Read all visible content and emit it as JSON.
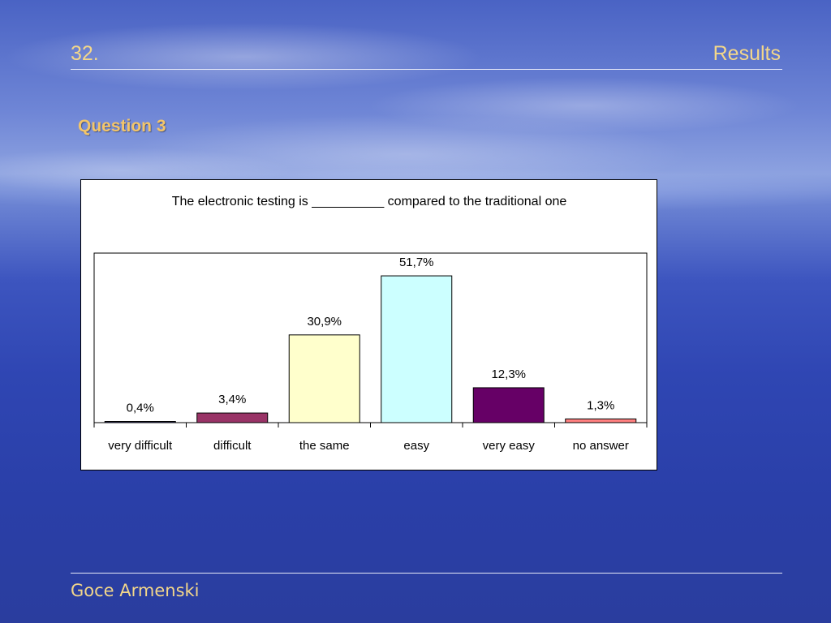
{
  "header": {
    "slide_number": "32.",
    "title": "Results"
  },
  "question_label": "Question 3",
  "footer": {
    "author": "Goce Armenski"
  },
  "chart_data": {
    "type": "bar",
    "title": "The electronic testing is __________ compared to the traditional one",
    "categories": [
      "very difficult",
      "difficult",
      "the same",
      "easy",
      "very easy",
      "no answer"
    ],
    "values": [
      0.4,
      3.4,
      30.9,
      51.7,
      12.3,
      1.3
    ],
    "data_labels": [
      "0,4%",
      "3,4%",
      "30,9%",
      "51,7%",
      "12,3%",
      "1,3%"
    ],
    "bar_colors": [
      "#333366",
      "#993366",
      "#ffffcc",
      "#ccffff",
      "#660066",
      "#ff8080"
    ],
    "xlabel": "",
    "ylabel": "",
    "ylim": [
      0,
      60
    ],
    "grid": false,
    "legend": "none"
  }
}
